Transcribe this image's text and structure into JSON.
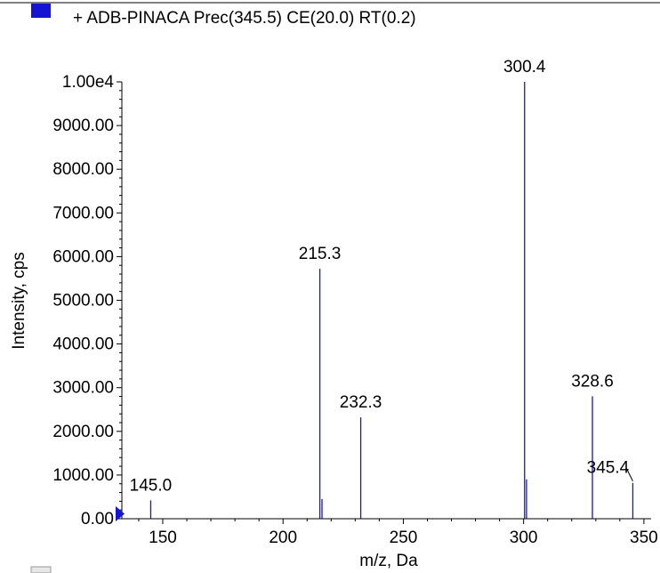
{
  "legend": {
    "swatch_color": "#1414d2",
    "label": "+ ADB-PINACA Prec(345.5) CE(20.0) RT(0.2)"
  },
  "chart_data": {
    "type": "bar",
    "title": "",
    "xlabel": "m/z, Da",
    "ylabel": "Intensity, cps",
    "xlim": [
      133,
      353
    ],
    "ylim": [
      0,
      10000
    ],
    "x_ticks": [
      {
        "value": 150,
        "label": "150"
      },
      {
        "value": 200,
        "label": "200"
      },
      {
        "value": 250,
        "label": "250"
      },
      {
        "value": 300,
        "label": "300"
      },
      {
        "value": 350,
        "label": "350"
      }
    ],
    "y_ticks": [
      {
        "value": 0,
        "label": "0.00"
      },
      {
        "value": 1000,
        "label": "1000.00"
      },
      {
        "value": 2000,
        "label": "2000.00"
      },
      {
        "value": 3000,
        "label": "3000.00"
      },
      {
        "value": 4000,
        "label": "4000.00"
      },
      {
        "value": 5000,
        "label": "5000.00"
      },
      {
        "value": 6000,
        "label": "6000.00"
      },
      {
        "value": 7000,
        "label": "7000.00"
      },
      {
        "value": 8000,
        "label": "8000.00"
      },
      {
        "value": 9000,
        "label": "9000.00"
      },
      {
        "value": 10000,
        "label": "1.00e4"
      }
    ],
    "series_color": "#1414d2",
    "peaks": [
      {
        "mz": 145.0,
        "intensity": 420
      },
      {
        "mz": 215.3,
        "intensity": 5720
      },
      {
        "mz": 216.2,
        "intensity": 450
      },
      {
        "mz": 232.3,
        "intensity": 2320
      },
      {
        "mz": 300.4,
        "intensity": 10000
      },
      {
        "mz": 301.2,
        "intensity": 900
      },
      {
        "mz": 328.6,
        "intensity": 2800
      },
      {
        "mz": 345.4,
        "intensity": 820
      }
    ],
    "peak_labels": [
      {
        "mz": 145.0,
        "intensity": 420,
        "text": "145.0",
        "leader": false
      },
      {
        "mz": 215.3,
        "intensity": 5720,
        "text": "215.3",
        "leader": false
      },
      {
        "mz": 232.3,
        "intensity": 2320,
        "text": "232.3",
        "leader": false
      },
      {
        "mz": 300.4,
        "intensity": 10000,
        "text": "300.4",
        "leader": false
      },
      {
        "mz": 328.6,
        "intensity": 2800,
        "text": "328.6",
        "leader": false
      },
      {
        "mz": 345.4,
        "intensity": 820,
        "text": "345.4",
        "leader": true
      }
    ]
  }
}
